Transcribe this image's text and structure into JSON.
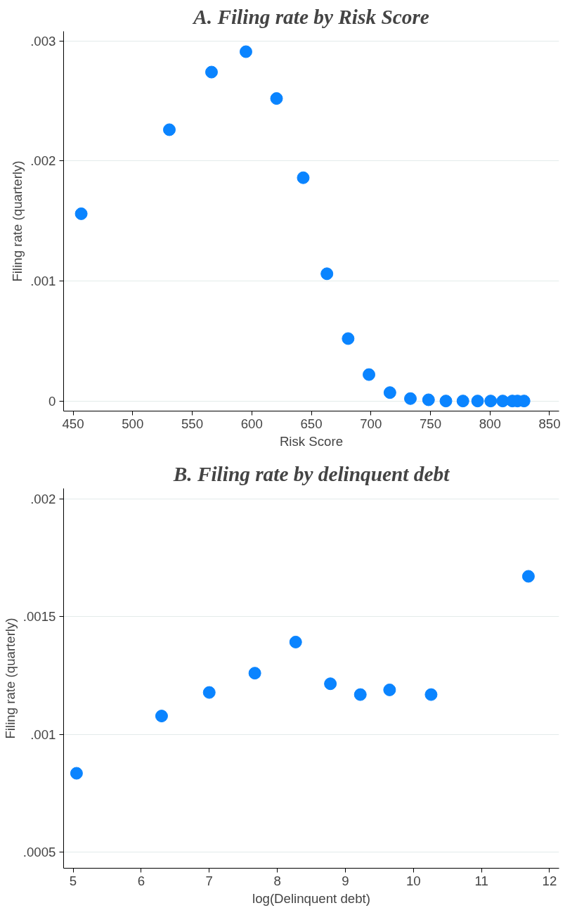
{
  "chart_data": [
    {
      "type": "scatter",
      "title": "A. Filing rate by Risk Score",
      "xlabel": "Risk Score",
      "ylabel": "Filing rate (quarterly)",
      "x": [
        456.8,
        530.8,
        566.2,
        595.1,
        620.8,
        643.2,
        663.1,
        680.9,
        698.4,
        716.0,
        733.2,
        748.4,
        763.0,
        777.3,
        789.6,
        800.6,
        810.7,
        818.8,
        823.1,
        828.6
      ],
      "series": [
        {
          "color": "#0a84ff",
          "values": [
            0.00156,
            0.00226,
            0.00274,
            0.00291,
            0.00252,
            0.00186,
            0.00106,
            0.00052,
            0.00022,
            7e-05,
            2e-05,
            1e-05,
            0,
            0,
            0,
            0,
            0,
            0,
            0,
            0
          ]
        }
      ],
      "xlim": [
        442,
        858
      ],
      "xticks": [
        450,
        500,
        550,
        600,
        650,
        700,
        750,
        800,
        850
      ],
      "ylim": [
        -8.4e-05,
        0.00308
      ],
      "yticks": [
        {
          "value": 0,
          "label": "0"
        },
        {
          "value": 0.001,
          "label": ".001"
        },
        {
          "value": 0.002,
          "label": ".002"
        },
        {
          "value": 0.003,
          "label": ".003"
        }
      ],
      "grid": "y",
      "marker": "circle"
    },
    {
      "type": "scatter",
      "title": "B. Filing rate by delinquent debt",
      "xlabel": "log(Delinquent debt)",
      "ylabel": "Filing rate (quarterly)",
      "x": [
        5.05,
        6.3,
        7.0,
        7.67,
        8.27,
        8.78,
        9.22,
        9.65,
        10.26,
        11.69
      ],
      "series": [
        {
          "color": "#0a84ff",
          "values": [
            0.000835,
            0.001078,
            0.001178,
            0.00126,
            0.001392,
            0.001215,
            0.001169,
            0.001189,
            0.001169,
            0.001671
          ]
        }
      ],
      "xlim": [
        4.86,
        12.14
      ],
      "xticks": [
        5,
        6,
        7,
        8,
        9,
        10,
        11,
        12
      ],
      "ylim": [
        0.000432,
        0.002044
      ],
      "yticks": [
        {
          "value": 0.0005,
          "label": ".0005"
        },
        {
          "value": 0.001,
          "label": ".001"
        },
        {
          "value": 0.0015,
          "label": ".0015"
        },
        {
          "value": 0.002,
          "label": ".002"
        }
      ],
      "grid": "y",
      "marker": "circle"
    }
  ]
}
